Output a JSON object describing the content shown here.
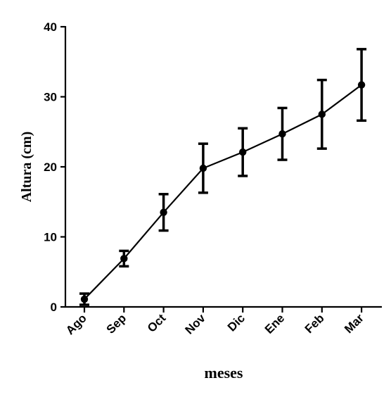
{
  "chart_data": {
    "type": "line",
    "title": "",
    "xlabel": "meses",
    "ylabel": "Altura (cm)",
    "ylim": [
      0,
      40
    ],
    "yticks": [
      0,
      10,
      20,
      30,
      40
    ],
    "grid": false,
    "categories": [
      "Ago",
      "Sep",
      "Oct",
      "Nov",
      "Dic",
      "Ene",
      "Feb",
      "Mar"
    ],
    "series": [
      {
        "values": [
          1.1,
          6.9,
          13.5,
          19.8,
          22.1,
          24.7,
          27.5,
          31.7
        ],
        "error": [
          0.8,
          1.1,
          2.6,
          3.5,
          3.4,
          3.7,
          4.9,
          5.1
        ],
        "color": "#000000",
        "marker": "circle"
      }
    ]
  }
}
